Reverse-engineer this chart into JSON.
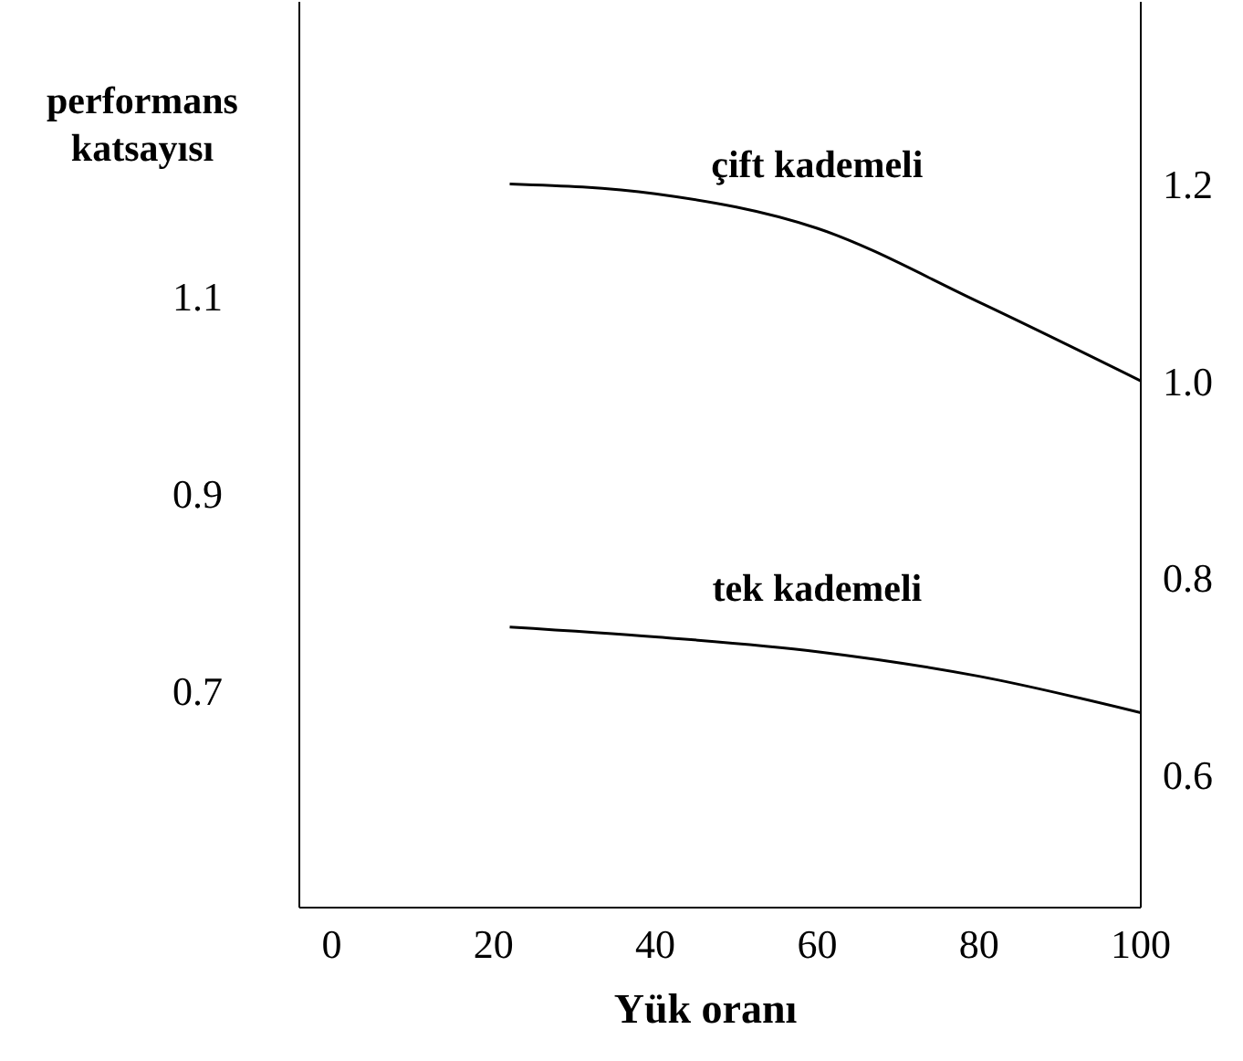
{
  "chart_data": {
    "type": "line",
    "xlabel": "Yük oranı",
    "ylabel": "performans katsayısı",
    "x": [
      22,
      40,
      60,
      80,
      100
    ],
    "series": [
      {
        "name": "çift kademeli",
        "color": "#000000",
        "axis": "y2",
        "values": [
          1.2,
          1.19,
          1.155,
          1.08,
          1.0
        ]
      },
      {
        "name": "tek kademeli",
        "color": "#000000",
        "axis": "y2",
        "values": [
          0.75,
          0.74,
          0.725,
          0.7,
          0.663
        ]
      }
    ],
    "xlim": [
      -4,
      100
    ],
    "xticks": [
      0,
      20,
      40,
      60,
      80,
      100
    ],
    "ylim": [
      0.48,
      1.4
    ],
    "yticks": [
      0.7,
      0.9,
      1.1
    ],
    "y2lim": [
      0.465,
      1.385
    ],
    "y2ticks": [
      0.6,
      0.8,
      {
        "value": 1,
        "label": "1.0"
      },
      1.2
    ],
    "grid": false,
    "legend": false,
    "marker": "none",
    "line_style": "solid"
  }
}
